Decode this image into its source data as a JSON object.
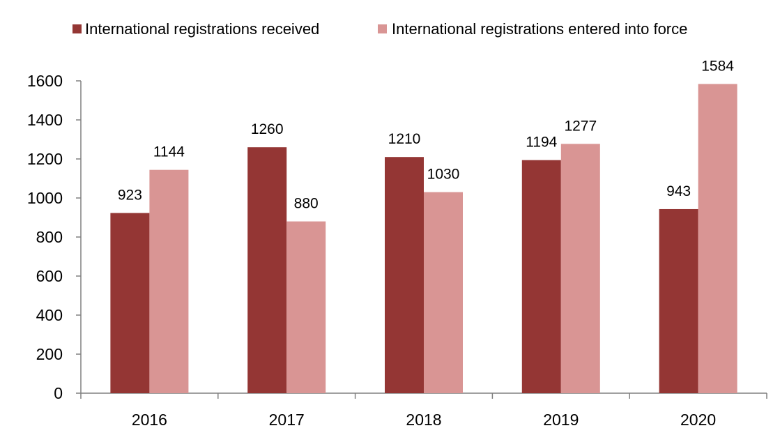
{
  "chart_data": {
    "type": "bar",
    "title": "",
    "xlabel": "",
    "ylabel": "",
    "categories": [
      "2016",
      "2017",
      "2018",
      "2019",
      "2020"
    ],
    "series": [
      {
        "name": "International registrations received",
        "color": "#943634",
        "values": [
          923,
          1260,
          1210,
          1194,
          943
        ]
      },
      {
        "name": "International registrations entered into force",
        "color": "#D99594",
        "values": [
          1144,
          880,
          1030,
          1277,
          1584
        ]
      }
    ],
    "ylim": [
      0,
      1600
    ],
    "yticks": [
      0,
      200,
      400,
      600,
      800,
      1000,
      1200,
      1400,
      1600
    ],
    "grid": false,
    "legend_position": "top",
    "data_labels": true
  }
}
